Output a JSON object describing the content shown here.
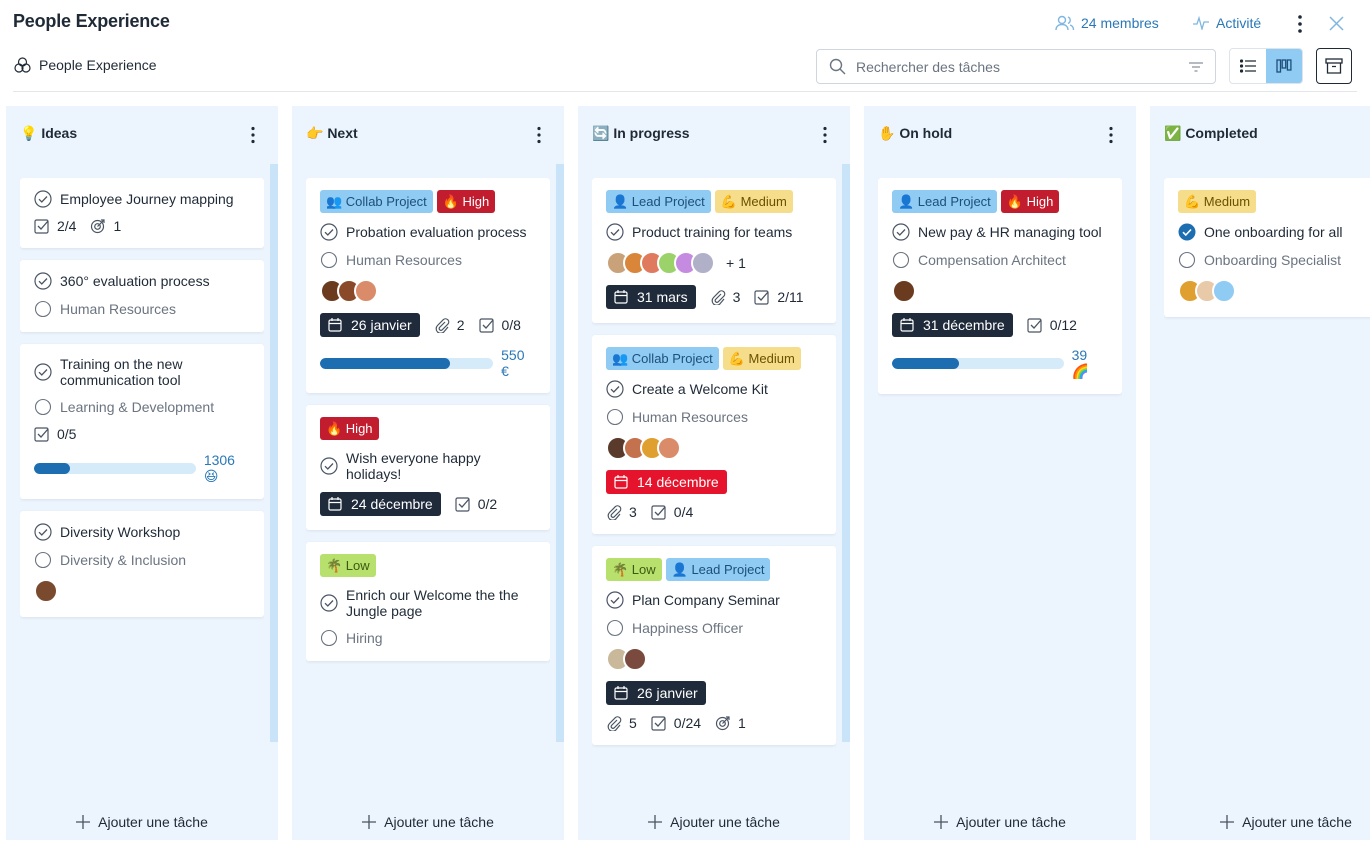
{
  "header": {
    "title": "People Experience",
    "members": "24 membres",
    "activity": "Activité",
    "breadcrumb": "People Experience",
    "search_placeholder": "Rechercher des tâches"
  },
  "columns": [
    {
      "title": "💡 Ideas",
      "add": "Ajouter une tâche",
      "cards": [
        {
          "title": "Employee Journey mapping",
          "checklist": "2/4",
          "goals": "1"
        },
        {
          "title": "360° evaluation process",
          "role": "Human Resources"
        },
        {
          "title": "Training on the new communication tool",
          "role": "Learning & Development",
          "checklist": "0/5",
          "progress": {
            "fill": 22,
            "label": "1306 😆"
          }
        },
        {
          "title": "Diversity Workshop",
          "role": "Diversity & Inclusion",
          "avatars": [
            "#7a4a2e"
          ]
        }
      ]
    },
    {
      "title": "👉 Next",
      "add": "Ajouter une tâche",
      "cards": [
        {
          "tags": [
            {
              "label": "👥 Collab Project",
              "bg": "#8fcbf2",
              "fg": "#1d4f7a"
            },
            {
              "label": "🔥 High",
              "bg": "#c21d2f",
              "fg": "#ffffff"
            }
          ],
          "title": "Probation evaluation process",
          "role": "Human Resources",
          "avatars": [
            "#6b3b1f",
            "#8a4a2a",
            "#d98b6a"
          ],
          "date": "26 janvier",
          "attachments": "2",
          "checklist": "0/8",
          "progress": {
            "fill": 75,
            "label": "550 €"
          }
        },
        {
          "tags": [
            {
              "label": "🔥 High",
              "bg": "#c21d2f",
              "fg": "#ffffff"
            }
          ],
          "title": "Wish everyone happy holidays!",
          "date": "24 décembre",
          "checklist": "0/2"
        },
        {
          "tags": [
            {
              "label": "🌴 Low",
              "bg": "#b8e06c",
              "fg": "#3b5a12"
            }
          ],
          "title": "Enrich our Welcome the the Jungle page",
          "role": "Hiring"
        }
      ]
    },
    {
      "title": "🔄 In progress",
      "add": "Ajouter une tâche",
      "cards": [
        {
          "tags": [
            {
              "label": "👤 Lead Project",
              "bg": "#8fcbf2",
              "fg": "#1d4f7a"
            },
            {
              "label": "💪 Medium",
              "bg": "#f6dd8c",
              "fg": "#6a5100"
            }
          ],
          "title": "Product training for teams",
          "avatars": [
            "#c9a27a",
            "#d9863a",
            "#e07a5f",
            "#9bd36a",
            "#c58be0",
            "#b0b0c8"
          ],
          "more": "+ 1",
          "date": "31 mars",
          "attachments": "3",
          "checklist": "2/11"
        },
        {
          "tags": [
            {
              "label": "👥 Collab Project",
              "bg": "#8fcbf2",
              "fg": "#1d4f7a"
            },
            {
              "label": "💪 Medium",
              "bg": "#f6dd8c",
              "fg": "#6a5100"
            }
          ],
          "title": "Create a Welcome Kit",
          "role": "Human Resources",
          "avatars": [
            "#5a3a2a",
            "#c4714e",
            "#e0a030",
            "#d98b6a"
          ],
          "date": "14 décembre",
          "date_alert": true,
          "attachments": "3",
          "checklist": "0/4"
        },
        {
          "tags": [
            {
              "label": "🌴 Low",
              "bg": "#b8e06c",
              "fg": "#3b5a12"
            },
            {
              "label": "👤 Lead Project",
              "bg": "#8fcbf2",
              "fg": "#1d4f7a"
            }
          ],
          "title": "Plan Company Seminar",
          "role": "Happiness Officer",
          "avatars": [
            "#c9b89a",
            "#7a4a3e"
          ],
          "date": "26 janvier",
          "attachments": "5",
          "checklist": "0/24",
          "goals": "1"
        }
      ]
    },
    {
      "title": "✋ On hold",
      "add": "Ajouter une tâche",
      "cards": [
        {
          "tags": [
            {
              "label": "👤 Lead Project",
              "bg": "#8fcbf2",
              "fg": "#1d4f7a"
            },
            {
              "label": "🔥 High",
              "bg": "#c21d2f",
              "fg": "#ffffff"
            }
          ],
          "title": "New pay & HR managing tool",
          "role": "Compensation Architect",
          "avatars": [
            "#6b3b1f"
          ],
          "date": "31 décembre",
          "checklist": "0/12",
          "progress": {
            "fill": 39,
            "label": "39 🌈"
          }
        }
      ]
    },
    {
      "title": "✅ Completed",
      "add": "Ajouter une tâche",
      "cards": [
        {
          "tags": [
            {
              "label": "💪 Medium",
              "bg": "#f6dd8c",
              "fg": "#6a5100"
            }
          ],
          "title": "One onboarding for all",
          "done": true,
          "role": "Onboarding Specialist",
          "avatars": [
            "#e0a030",
            "#e8c9a8",
            "#8fcbf2"
          ]
        }
      ]
    }
  ]
}
